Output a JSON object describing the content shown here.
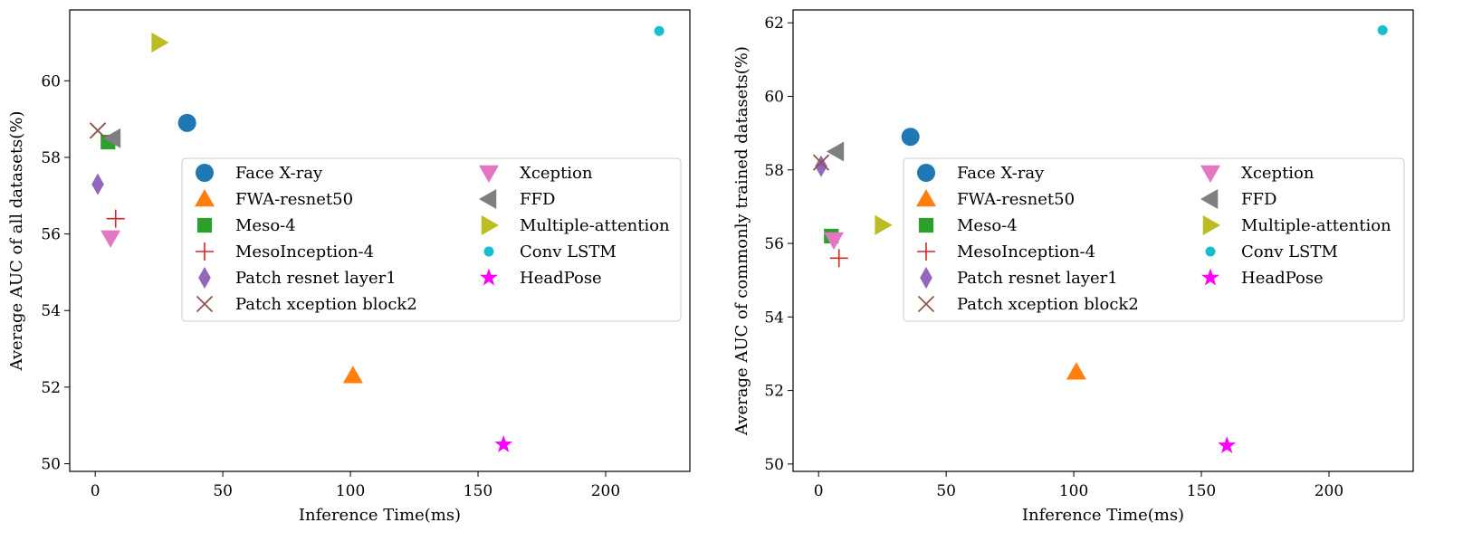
{
  "colors": {
    "Face X-ray": "#1f77b4",
    "FWA-resnet50": "#ff7f0e",
    "Meso-4": "#2ca02c",
    "MesoInception-4": "#d62728",
    "Patch resnet layer1": "#9467bd",
    "Patch xception block2": "#8c564b",
    "Xception": "#e377c2",
    "FFD": "#7f7f7f",
    "Multiple-attention": "#bcbd22",
    "Conv LSTM": "#17becf",
    "HeadPose": "#ff00ff"
  },
  "chart_data": [
    {
      "type": "scatter",
      "title": "",
      "xlabel": "Inference Time(ms)",
      "ylabel": "Average AUC of all datasets(%)",
      "xlim": [
        -10,
        233
      ],
      "ylim": [
        49.8,
        61.85
      ],
      "xticks": [
        0,
        50,
        100,
        150,
        200
      ],
      "yticks": [
        50,
        52,
        54,
        56,
        58,
        60
      ],
      "xtick_labels": [
        "0",
        "50",
        "100",
        "150",
        "200"
      ],
      "ytick_labels": [
        "50",
        "52",
        "54",
        "56",
        "58",
        "60"
      ],
      "legend": {
        "position": "center-right",
        "columns": 2
      },
      "series": [
        {
          "name": "Face X-ray",
          "marker": "circle",
          "x": 36,
          "y": 58.9
        },
        {
          "name": "FWA-resnet50",
          "marker": "triangle-up",
          "x": 101,
          "y": 52.3
        },
        {
          "name": "Meso-4",
          "marker": "square",
          "x": 5,
          "y": 58.4
        },
        {
          "name": "MesoInception-4",
          "marker": "plus",
          "x": 8,
          "y": 56.4
        },
        {
          "name": "Patch resnet layer1",
          "marker": "diamond",
          "x": 1,
          "y": 57.3
        },
        {
          "name": "Patch xception block2",
          "marker": "x",
          "x": 1,
          "y": 58.7
        },
        {
          "name": "Xception",
          "marker": "triangle-down",
          "x": 6,
          "y": 55.9
        },
        {
          "name": "FFD",
          "marker": "triangle-left",
          "x": 7,
          "y": 58.5
        },
        {
          "name": "Multiple-attention",
          "marker": "triangle-right",
          "x": 25,
          "y": 61.0
        },
        {
          "name": "Conv LSTM",
          "marker": "small-circle",
          "x": 221,
          "y": 61.3
        },
        {
          "name": "HeadPose",
          "marker": "star",
          "x": 160,
          "y": 50.5
        }
      ]
    },
    {
      "type": "scatter",
      "title": "",
      "xlabel": "Inference Time(ms)",
      "ylabel": "Average AUC of commonly trained datasets(%)",
      "xlim": [
        -10,
        233
      ],
      "ylim": [
        49.8,
        62.35
      ],
      "xticks": [
        0,
        50,
        100,
        150,
        200
      ],
      "yticks": [
        50,
        52,
        54,
        56,
        58,
        60,
        62
      ],
      "xtick_labels": [
        "0",
        "50",
        "100",
        "150",
        "200"
      ],
      "ytick_labels": [
        "50",
        "52",
        "54",
        "56",
        "58",
        "60",
        "62"
      ],
      "legend": {
        "position": "center-right",
        "columns": 2
      },
      "series": [
        {
          "name": "Face X-ray",
          "marker": "circle",
          "x": 36,
          "y": 58.9
        },
        {
          "name": "FWA-resnet50",
          "marker": "triangle-up",
          "x": 101,
          "y": 52.5
        },
        {
          "name": "Meso-4",
          "marker": "square",
          "x": 5,
          "y": 56.2
        },
        {
          "name": "MesoInception-4",
          "marker": "plus",
          "x": 8,
          "y": 55.6
        },
        {
          "name": "Patch resnet layer1",
          "marker": "diamond",
          "x": 1,
          "y": 58.1
        },
        {
          "name": "Patch xception block2",
          "marker": "x",
          "x": 1,
          "y": 58.2
        },
        {
          "name": "Xception",
          "marker": "triangle-down",
          "x": 6,
          "y": 56.1
        },
        {
          "name": "FFD",
          "marker": "triangle-left",
          "x": 7,
          "y": 58.5
        },
        {
          "name": "Multiple-attention",
          "marker": "triangle-right",
          "x": 25,
          "y": 56.5
        },
        {
          "name": "Conv LSTM",
          "marker": "small-circle",
          "x": 221,
          "y": 61.8
        },
        {
          "name": "HeadPose",
          "marker": "star",
          "x": 160,
          "y": 50.5
        }
      ]
    }
  ]
}
